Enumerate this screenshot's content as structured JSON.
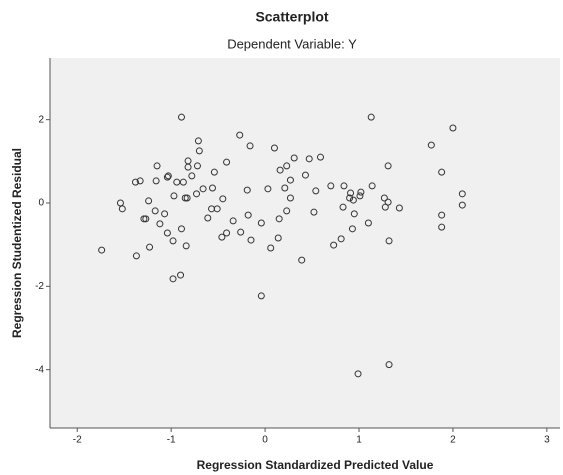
{
  "chart_data": {
    "type": "scatter",
    "title": "Scatterplot",
    "subtitle": "Dependent Variable: Y",
    "x_label": "Regression Standardized Predicted Value",
    "y_label": "Regression Studentized Residual",
    "x": [
      -1.74,
      -1.54,
      -1.52,
      -1.38,
      -1.33,
      -1.37,
      -1.29,
      -1.27,
      -1.24,
      -1.23,
      -1.17,
      -1.16,
      -1.15,
      -1.12,
      -1.07,
      -1.04,
      -1.04,
      -1.03,
      -0.98,
      -0.98,
      -0.97,
      -0.94,
      -0.9,
      -0.89,
      -0.89,
      -0.87,
      -0.85,
      -0.84,
      -0.83,
      -0.82,
      -0.82,
      -0.78,
      -0.73,
      -0.72,
      -0.71,
      -0.7,
      -0.66,
      -0.61,
      -0.57,
      -0.56,
      -0.54,
      -0.51,
      -0.46,
      -0.45,
      -0.41,
      -0.41,
      -0.34,
      -0.27,
      -0.26,
      -0.19,
      -0.18,
      -0.16,
      -0.15,
      -0.04,
      -0.04,
      0.03,
      0.06,
      0.1,
      0.14,
      0.15,
      0.16,
      0.21,
      0.23,
      0.23,
      0.27,
      0.27,
      0.31,
      0.39,
      0.43,
      0.47,
      0.52,
      0.54,
      0.59,
      0.7,
      0.73,
      0.81,
      0.84,
      0.83,
      0.9,
      0.91,
      0.93,
      0.94,
      0.95,
      0.99,
      1.01,
      1.02,
      1.1,
      1.13,
      1.14,
      1.27,
      1.28,
      1.31,
      1.31,
      1.32,
      1.32,
      1.43,
      1.77,
      1.88,
      1.88,
      1.88,
      2.0,
      2.1,
      2.1
    ],
    "y": [
      -1.13,
      0,
      -0.14,
      0.5,
      0.53,
      -1.27,
      -0.38,
      -0.38,
      0.05,
      -1.06,
      -0.19,
      0.53,
      0.89,
      -0.5,
      -0.26,
      -0.72,
      0.62,
      0.65,
      -0.91,
      -1.82,
      0.17,
      0.5,
      -1.73,
      2.06,
      -0.62,
      0.5,
      0.12,
      -1.03,
      0.12,
      1.01,
      0.86,
      0.65,
      0.22,
      0.89,
      1.49,
      1.25,
      0.34,
      -0.36,
      -0.14,
      0.36,
      0.74,
      -0.14,
      -0.82,
      0.1,
      0.98,
      -0.72,
      -0.43,
      1.63,
      -0.7,
      0.31,
      -0.29,
      1.37,
      -0.89,
      -2.23,
      -0.48,
      0.34,
      -1.08,
      1.32,
      -0.84,
      -0.38,
      0.79,
      0.36,
      -0.19,
      0.89,
      0.55,
      0.12,
      1.08,
      -1.37,
      0.67,
      1.06,
      -0.22,
      0.29,
      1.1,
      0.41,
      -1.01,
      -0.86,
      0.41,
      -0.1,
      0.12,
      0.24,
      -0.62,
      0.07,
      -0.26,
      -4.1,
      0.17,
      0.26,
      -0.48,
      2.06,
      0.41,
      0.12,
      -0.1,
      0.02,
      0.89,
      -0.91,
      -3.88,
      -0.12,
      1.39,
      0.74,
      -0.29,
      -0.58,
      1.8,
      0.22,
      -0.05
    ],
    "xlim": [
      -2.29,
      3.14
    ],
    "ylim": [
      -5.4,
      3.48
    ],
    "xticks": [
      -2,
      -1,
      0,
      1,
      2,
      3
    ],
    "yticks": [
      -4,
      -2,
      0,
      2
    ],
    "marker_color": "#333333",
    "background": "#f0f0f0"
  }
}
